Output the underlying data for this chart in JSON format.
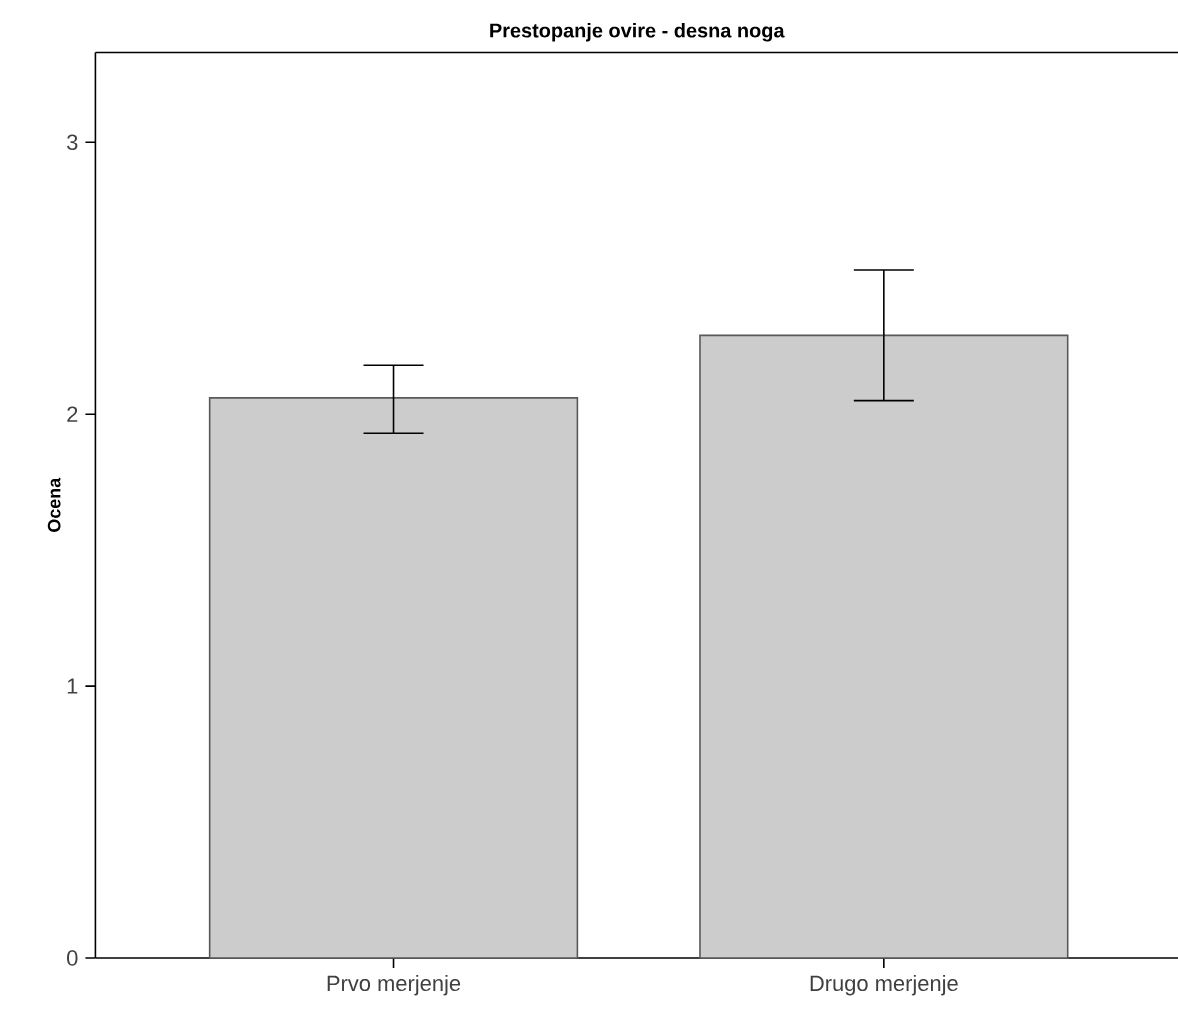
{
  "chart_data": {
    "type": "bar",
    "title": "Prestopanje ovire - desna noga",
    "ylabel": "Ocena",
    "categories": [
      "Prvo merjenje",
      "Drugo merjenje"
    ],
    "values": [
      2.06,
      2.29
    ],
    "errors": [
      [
        1.93,
        2.18
      ],
      [
        2.05,
        2.53
      ]
    ],
    "color": "#cccccc",
    "ylim": [
      0,
      3.33
    ],
    "yticks": [
      0,
      1,
      2,
      3
    ]
  }
}
